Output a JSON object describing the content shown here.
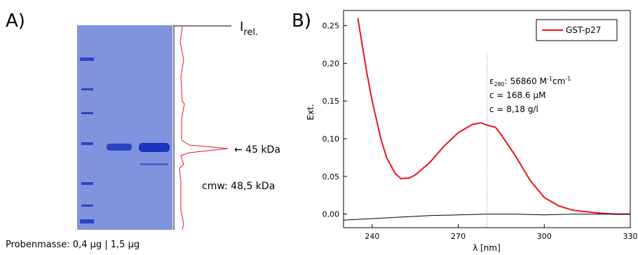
{
  "panel_a": {
    "label": "A)",
    "trace_label": "I",
    "trace_label_sub": "rel.",
    "band_label": "← 45 kDa",
    "cmw": "cmw:  48,5 kDa",
    "sample_mass": "Probenmasse:  0,4 µg | 1,5 µg"
  },
  "chart_data": {
    "type": "line",
    "panel_label": "B)",
    "x_label": "λ [nm]",
    "y_label": "Ext.",
    "xlim": [
      230,
      330
    ],
    "ylim": [
      -0.018,
      0.27
    ],
    "xticks": [
      240,
      270,
      300,
      330
    ],
    "yticks": [
      {
        "value": 0,
        "label": "0,00"
      },
      {
        "value": 0.05,
        "label": "0,05"
      },
      {
        "value": 0.1,
        "label": "0,10"
      },
      {
        "value": 0.15,
        "label": "0,15"
      },
      {
        "value": 0.2,
        "label": "0,20"
      },
      {
        "value": 0.25,
        "label": "0,25"
      }
    ],
    "vline": 280,
    "legend": "top-right",
    "annotations": [
      {
        "parts": [
          "ε",
          "280",
          ": 56860 M",
          "-1",
          "cm",
          "-1"
        ]
      },
      {
        "parts": [
          "c = 168.6 µM"
        ]
      },
      {
        "parts": [
          "c = 8,18 g/l"
        ]
      }
    ],
    "series": [
      {
        "name": "GST-p27",
        "color": "#e8161b",
        "x": [
          235,
          238,
          240,
          243,
          245,
          248,
          250,
          253,
          255,
          260,
          265,
          270,
          275,
          278,
          280,
          283,
          285,
          290,
          295,
          300,
          305,
          310,
          315,
          320,
          325,
          330
        ],
        "values": [
          0.26,
          0.19,
          0.15,
          0.1,
          0.075,
          0.054,
          0.047,
          0.048,
          0.052,
          0.068,
          0.09,
          0.108,
          0.119,
          0.121,
          0.118,
          0.115,
          0.105,
          0.077,
          0.045,
          0.022,
          0.011,
          0.005,
          0.003,
          0.001,
          0,
          0
        ]
      },
      {
        "color": "#000000",
        "x": [
          230,
          240,
          250,
          260,
          270,
          280,
          290,
          300,
          310,
          320,
          330
        ],
        "values": [
          -0.008,
          -0.006,
          -0.004,
          -0.002,
          -0.001,
          0,
          0,
          -0.001,
          0,
          0,
          0
        ]
      }
    ]
  }
}
